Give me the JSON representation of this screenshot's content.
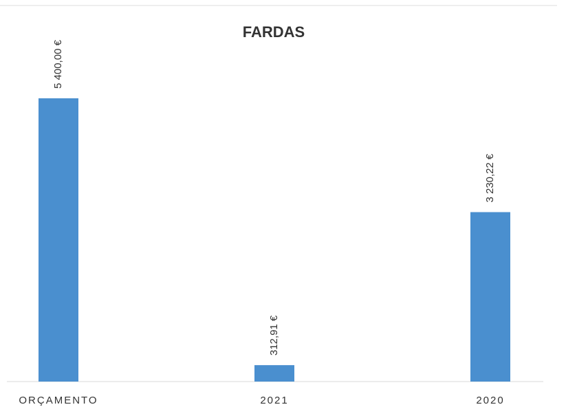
{
  "chart_data": {
    "type": "bar",
    "title": "FARDAS",
    "categories": [
      "ORÇAMENTO",
      "2021",
      "2020"
    ],
    "values": [
      5400,
      312.91,
      3230.22
    ],
    "value_labels": [
      "5 400,00 €",
      "312,91 €",
      "3 230,22 €"
    ],
    "color": "#4a8fcf",
    "ylim": [
      0,
      6000
    ]
  }
}
